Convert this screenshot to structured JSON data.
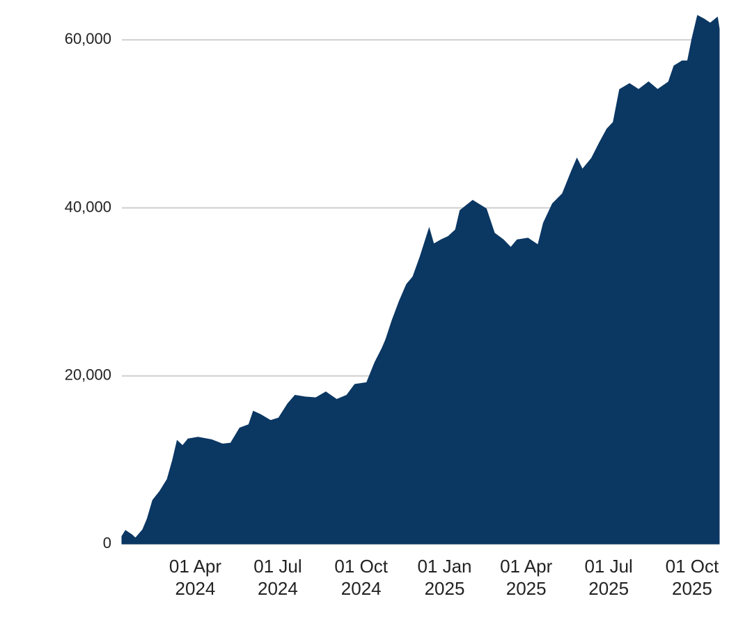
{
  "chart_data": {
    "type": "area",
    "color": "#0b3763",
    "grid": true,
    "x": [
      "2024-01-11",
      "2024-01-15",
      "2024-01-22",
      "2024-01-26",
      "2024-02-03",
      "2024-02-08",
      "2024-02-14",
      "2024-02-22",
      "2024-03-01",
      "2024-03-07",
      "2024-03-12",
      "2024-03-18",
      "2024-03-24",
      "2024-04-04",
      "2024-04-19",
      "2024-05-01",
      "2024-05-10",
      "2024-05-20",
      "2024-05-30",
      "2024-06-04",
      "2024-06-12",
      "2024-06-23",
      "2024-07-02",
      "2024-07-12",
      "2024-07-20",
      "2024-07-31",
      "2024-08-12",
      "2024-08-23",
      "2024-09-04",
      "2024-09-15",
      "2024-09-24",
      "2024-10-07",
      "2024-10-16",
      "2024-10-24",
      "2024-10-28",
      "2024-11-04",
      "2024-11-12",
      "2024-11-20",
      "2024-11-27",
      "2024-12-05",
      "2024-12-15",
      "2024-12-20",
      "2024-12-28",
      "2025-01-05",
      "2025-01-13",
      "2025-01-18",
      "2025-02-01",
      "2025-02-16",
      "2025-02-25",
      "2025-03-07",
      "2025-03-15",
      "2025-03-22",
      "2025-04-03",
      "2025-04-14",
      "2025-04-20",
      "2025-04-30",
      "2025-05-11",
      "2025-05-21",
      "2025-05-27",
      "2025-06-02",
      "2025-06-12",
      "2025-06-21",
      "2025-06-29",
      "2025-07-06",
      "2025-07-13",
      "2025-07-24",
      "2025-08-03",
      "2025-08-14",
      "2025-08-24",
      "2025-09-05",
      "2025-09-11",
      "2025-09-20",
      "2025-09-26",
      "2025-10-01",
      "2025-10-07",
      "2025-10-14",
      "2025-10-21",
      "2025-10-29",
      "2025-10-31"
    ],
    "values": [
      900,
      1600,
      1100,
      700,
      1700,
      3000,
      5200,
      6300,
      7700,
      10000,
      12300,
      11700,
      12500,
      12700,
      12400,
      11900,
      12000,
      13800,
      14200,
      15800,
      15400,
      14700,
      15000,
      16700,
      17700,
      17500,
      17400,
      18100,
      17200,
      17700,
      19000,
      19200,
      21600,
      23300,
      24300,
      26600,
      28900,
      30900,
      31800,
      34200,
      37600,
      35700,
      36200,
      36600,
      37400,
      39700,
      40900,
      39900,
      37000,
      36200,
      35300,
      36200,
      36400,
      35600,
      38200,
      40500,
      41700,
      44400,
      45900,
      44600,
      45900,
      47800,
      49400,
      50200,
      54100,
      54800,
      54100,
      55000,
      54100,
      55000,
      56900,
      57500,
      57500,
      60200,
      62900,
      62500,
      62000,
      62700,
      61300
    ],
    "xlim": [
      "2024-01-11",
      "2025-10-31"
    ],
    "xticks": [
      {
        "value": "2024-04-01",
        "label": "01 Apr 2024"
      },
      {
        "value": "2024-07-01",
        "label": "01 Jul 2024"
      },
      {
        "value": "2024-10-01",
        "label": "01 Oct 2024"
      },
      {
        "value": "2025-01-01",
        "label": "01 Jan 2025"
      },
      {
        "value": "2025-04-01",
        "label": "01 Apr 2025"
      },
      {
        "value": "2025-07-01",
        "label": "01 Jul 2025"
      },
      {
        "value": "2025-10-01",
        "label": "01 Oct 2025"
      }
    ],
    "ylim": [
      0,
      64000
    ],
    "yticks": [
      0,
      {
        "value": 20000,
        "label": "20,000"
      },
      {
        "value": 40000,
        "label": "40,000"
      },
      {
        "value": 60000,
        "label": "60,000"
      }
    ]
  }
}
